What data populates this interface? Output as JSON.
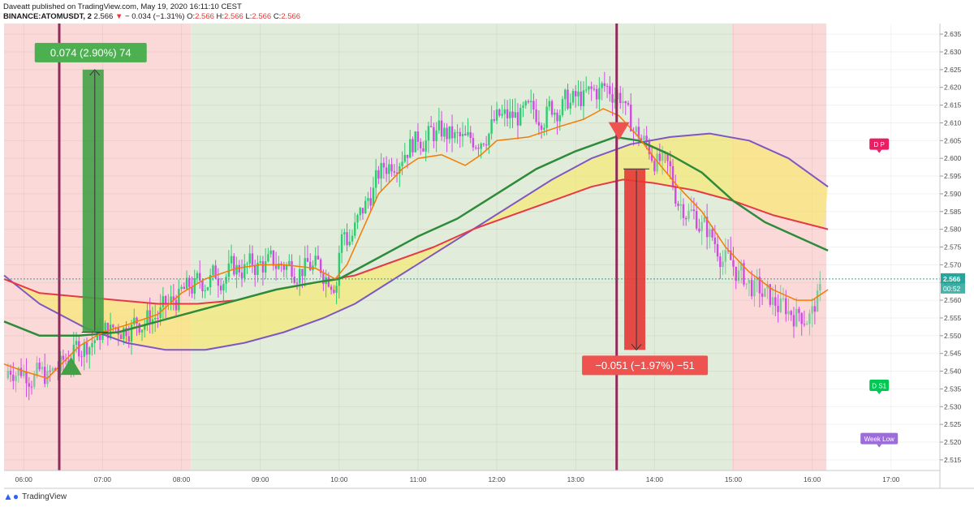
{
  "header": {
    "line1": "Daveatt published on TradingView.com, May 19, 2020 16:11:10 CEST",
    "symbol": "BINANCE:ATOMUSDT, 2",
    "price": "2.566",
    "change": "− 0.034 (−1.31%)",
    "o_label": "O:",
    "o": "2.566",
    "h_label": "H:",
    "h": "2.566",
    "l_label": "L:",
    "l": "2.566",
    "c_label": "C:",
    "c": "2.566"
  },
  "footer": {
    "brand": "TradingView"
  },
  "chart_data": {
    "type": "candlestick",
    "ylim": [
      2.512,
      2.638
    ],
    "xlim": [
      5.75,
      17.62
    ],
    "y_ticks": [
      "2.635",
      "2.630",
      "2.625",
      "2.620",
      "2.615",
      "2.610",
      "2.605",
      "2.600",
      "2.595",
      "2.590",
      "2.585",
      "2.580",
      "2.575",
      "2.570",
      "2.565",
      "2.560",
      "2.555",
      "2.550",
      "2.545",
      "2.540",
      "2.535",
      "2.530",
      "2.525",
      "2.520",
      "2.515"
    ],
    "x_ticks": [
      {
        "h": 6,
        "label": "06:00"
      },
      {
        "h": 7,
        "label": "07:00"
      },
      {
        "h": 8,
        "label": "08:00"
      },
      {
        "h": 9,
        "label": "09:00"
      },
      {
        "h": 10,
        "label": "10:00"
      },
      {
        "h": 11,
        "label": "11:00"
      },
      {
        "h": 12,
        "label": "12:00"
      },
      {
        "h": 13,
        "label": "13:00"
      },
      {
        "h": 14,
        "label": "14:00"
      },
      {
        "h": 15,
        "label": "15:00"
      },
      {
        "h": 16,
        "label": "16:00"
      },
      {
        "h": 17,
        "label": "17:00"
      }
    ],
    "last_price": "2.566",
    "countdown": "00:52",
    "zones": [
      {
        "from": 5.75,
        "to": 8.12,
        "color": "#fbd9d9"
      },
      {
        "from": 8.12,
        "to": 14.98,
        "color": "#e1ecda"
      },
      {
        "from": 14.98,
        "to": 16.18,
        "color": "#fbd9d9"
      }
    ],
    "vlines": [
      6.45,
      13.52
    ],
    "ma_orange": [
      [
        5.75,
        2.542
      ],
      [
        6.0,
        2.54
      ],
      [
        6.3,
        2.538
      ],
      [
        6.7,
        2.547
      ],
      [
        7.0,
        2.551
      ],
      [
        7.3,
        2.553
      ],
      [
        7.7,
        2.556
      ],
      [
        8.0,
        2.562
      ],
      [
        8.3,
        2.566
      ],
      [
        8.7,
        2.569
      ],
      [
        9.0,
        2.57
      ],
      [
        9.3,
        2.57
      ],
      [
        9.7,
        2.569
      ],
      [
        9.95,
        2.566
      ],
      [
        10.1,
        2.57
      ],
      [
        10.3,
        2.58
      ],
      [
        10.5,
        2.59
      ],
      [
        10.8,
        2.597
      ],
      [
        11.0,
        2.6
      ],
      [
        11.3,
        2.601
      ],
      [
        11.6,
        2.598
      ],
      [
        11.8,
        2.601
      ],
      [
        12.0,
        2.605
      ],
      [
        12.4,
        2.606
      ],
      [
        12.8,
        2.609
      ],
      [
        13.1,
        2.611
      ],
      [
        13.35,
        2.614
      ],
      [
        13.55,
        2.612
      ],
      [
        13.8,
        2.606
      ],
      [
        14.0,
        2.6
      ],
      [
        14.3,
        2.592
      ],
      [
        14.6,
        2.585
      ],
      [
        14.9,
        2.575
      ],
      [
        15.2,
        2.568
      ],
      [
        15.5,
        2.563
      ],
      [
        15.8,
        2.56
      ],
      [
        16.0,
        2.56
      ],
      [
        16.2,
        2.563
      ]
    ],
    "ma_green": [
      [
        5.75,
        2.554
      ],
      [
        6.2,
        2.55
      ],
      [
        6.7,
        2.55
      ],
      [
        7.2,
        2.551
      ],
      [
        7.7,
        2.554
      ],
      [
        8.2,
        2.557
      ],
      [
        8.7,
        2.56
      ],
      [
        9.2,
        2.563
      ],
      [
        9.7,
        2.565
      ],
      [
        10.0,
        2.566
      ],
      [
        10.5,
        2.572
      ],
      [
        11.0,
        2.578
      ],
      [
        11.5,
        2.583
      ],
      [
        12.0,
        2.59
      ],
      [
        12.5,
        2.597
      ],
      [
        13.0,
        2.602
      ],
      [
        13.5,
        2.606
      ],
      [
        13.8,
        2.605
      ],
      [
        14.2,
        2.601
      ],
      [
        14.6,
        2.596
      ],
      [
        15.0,
        2.588
      ],
      [
        15.4,
        2.582
      ],
      [
        15.8,
        2.578
      ],
      [
        16.2,
        2.574
      ]
    ],
    "ma_red": [
      [
        5.75,
        2.566
      ],
      [
        6.2,
        2.562
      ],
      [
        6.7,
        2.561
      ],
      [
        7.2,
        2.56
      ],
      [
        7.7,
        2.559
      ],
      [
        8.2,
        2.559
      ],
      [
        8.7,
        2.56
      ],
      [
        9.2,
        2.563
      ],
      [
        9.7,
        2.565
      ],
      [
        10.2,
        2.567
      ],
      [
        10.7,
        2.571
      ],
      [
        11.2,
        2.575
      ],
      [
        11.7,
        2.58
      ],
      [
        12.2,
        2.584
      ],
      [
        12.7,
        2.588
      ],
      [
        13.2,
        2.592
      ],
      [
        13.6,
        2.594
      ],
      [
        14.0,
        2.593
      ],
      [
        14.5,
        2.591
      ],
      [
        15.0,
        2.588
      ],
      [
        15.5,
        2.584
      ],
      [
        16.2,
        2.58
      ]
    ],
    "ma_purple": [
      [
        5.75,
        2.567
      ],
      [
        6.2,
        2.559
      ],
      [
        6.8,
        2.552
      ],
      [
        7.3,
        2.548
      ],
      [
        7.8,
        2.546
      ],
      [
        8.3,
        2.546
      ],
      [
        8.8,
        2.548
      ],
      [
        9.3,
        2.551
      ],
      [
        9.8,
        2.555
      ],
      [
        10.2,
        2.559
      ],
      [
        10.7,
        2.566
      ],
      [
        11.2,
        2.573
      ],
      [
        11.7,
        2.58
      ],
      [
        12.2,
        2.587
      ],
      [
        12.7,
        2.594
      ],
      [
        13.2,
        2.6
      ],
      [
        13.7,
        2.604
      ],
      [
        14.2,
        2.606
      ],
      [
        14.7,
        2.607
      ],
      [
        15.2,
        2.605
      ],
      [
        15.7,
        2.6
      ],
      [
        16.2,
        2.592
      ]
    ],
    "annotations": [
      {
        "text": "0.074 (2.90%) 74",
        "kind": "long",
        "x": 6.88,
        "from": 2.551,
        "to": 2.625
      },
      {
        "text": "−0.051 (−1.97%) −51",
        "kind": "short",
        "x": 13.75,
        "from": 2.597,
        "to": 2.546
      }
    ],
    "markers": [
      {
        "kind": "up-arrow",
        "x": 6.6,
        "y": 2.541
      },
      {
        "kind": "down-arrow",
        "x": 13.55,
        "y": 2.607
      }
    ],
    "pivot_labels": [
      {
        "text": "D P",
        "x": 16.85,
        "y": 2.604,
        "color": "#e91e63"
      },
      {
        "text": "D S1",
        "x": 16.85,
        "y": 2.536,
        "color": "#00c853"
      },
      {
        "text": "Week Low",
        "x": 16.85,
        "y": 2.521,
        "color": "#9c6cd9"
      }
    ]
  }
}
